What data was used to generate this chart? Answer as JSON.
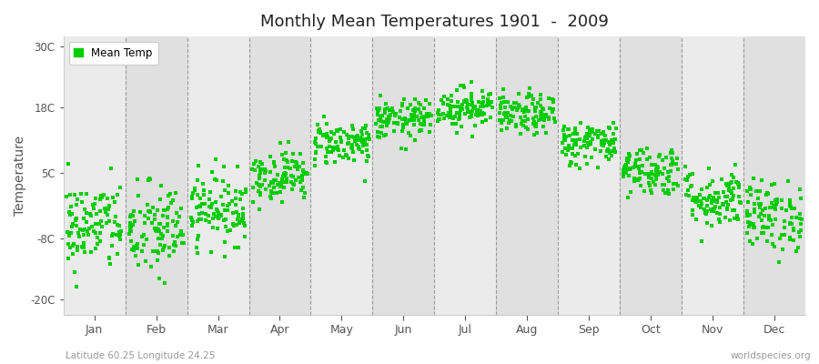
{
  "title": "Monthly Mean Temperatures 1901  -  2009",
  "ylabel": "Temperature",
  "xlabel_labels": [
    "Jan",
    "Feb",
    "Mar",
    "Apr",
    "May",
    "Jun",
    "Jul",
    "Aug",
    "Sep",
    "Oct",
    "Nov",
    "Dec"
  ],
  "yticks": [
    -20,
    -8,
    5,
    18,
    30
  ],
  "ytick_labels": [
    "-20C",
    "-8C",
    "5C",
    "18C",
    "30C"
  ],
  "ylim": [
    -23,
    32
  ],
  "dot_color": "#00cc00",
  "dot_size": 6,
  "outer_bg_color": "#ffffff",
  "plot_bg_color": "#ebebeb",
  "band_color_odd": "#ebebeb",
  "band_color_even": "#e0e0e0",
  "grid_color": "#999999",
  "subtitle_left": "Latitude 60.25 Longitude 24.25",
  "subtitle_right": "worldspecies.org",
  "legend_label": "Mean Temp",
  "monthly_means": [
    -5.5,
    -6.5,
    -2.0,
    4.5,
    11.0,
    15.5,
    18.0,
    16.5,
    11.0,
    5.5,
    0.0,
    -3.5
  ],
  "monthly_stds": [
    4.5,
    4.8,
    3.5,
    2.5,
    2.2,
    2.0,
    2.0,
    2.0,
    2.2,
    2.5,
    3.0,
    3.5
  ],
  "n_years": 109,
  "seed": 42
}
